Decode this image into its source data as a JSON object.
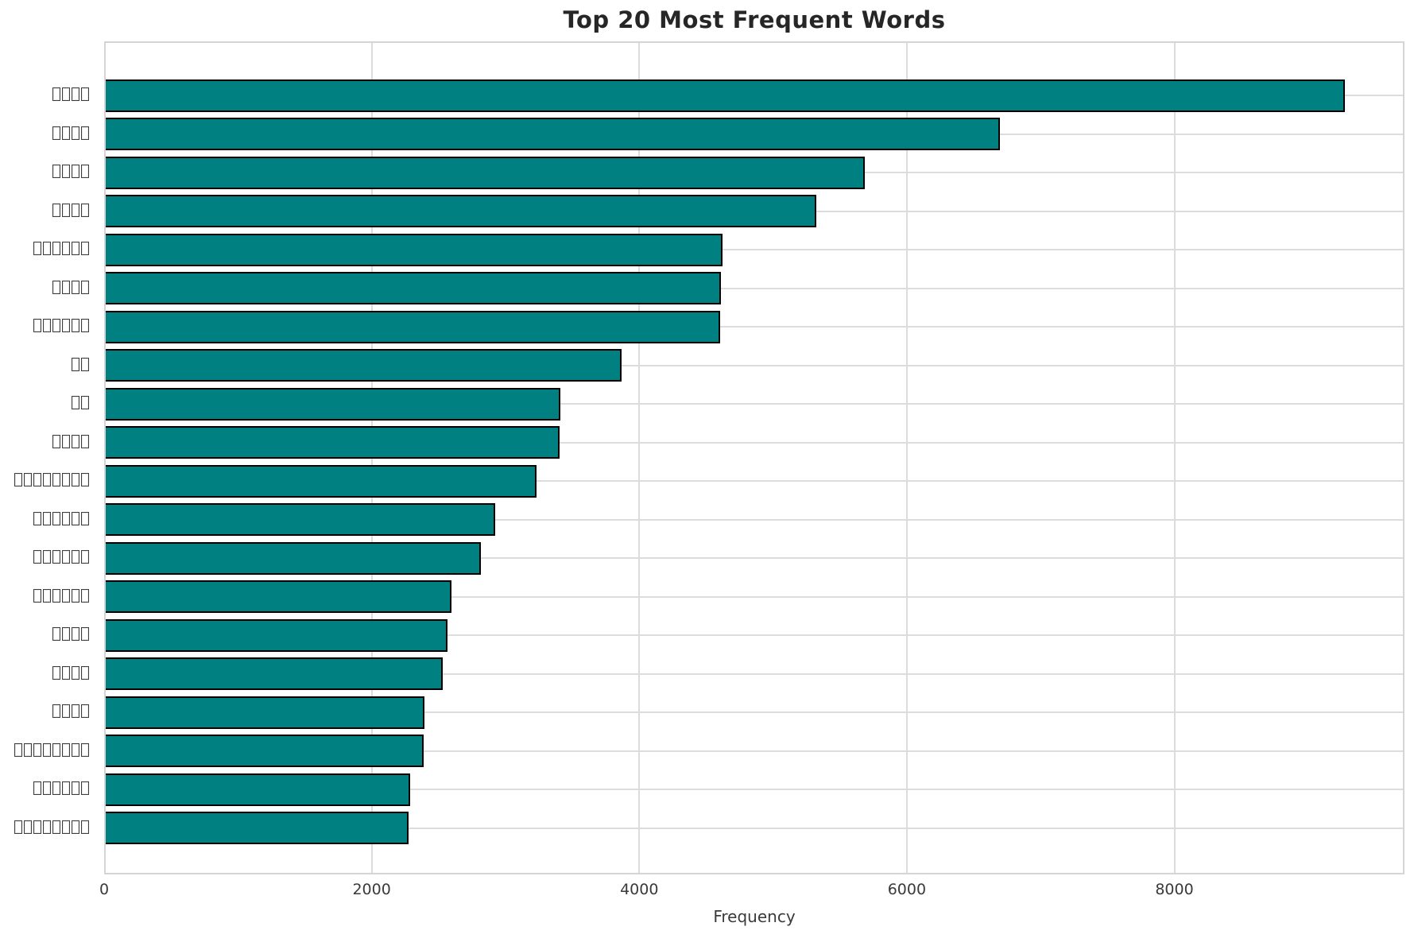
{
  "chart_data": {
    "type": "bar",
    "orientation": "horizontal",
    "title": "Top 20 Most Frequent Words",
    "xlabel": "Frequency",
    "ylabel": "",
    "xlim": [
      0,
      9720
    ],
    "xticks": [
      0,
      2000,
      4000,
      6000,
      8000
    ],
    "grid": true,
    "legend": false,
    "bar_color": "#008080",
    "bar_edge_color": "#000000",
    "grid_color": "#dcdcdc",
    "categories": [
      "□□□□",
      "□□□□",
      "□□□□",
      "□□□□",
      "□□□□□□",
      "□□□□",
      "□□□□□□",
      "□□",
      "□□",
      "□□□□",
      "□□□□□□□□",
      "□□□□□□",
      "□□□□□□",
      "□□□□□□",
      "□□□□",
      "□□□□",
      "□□□□",
      "□□□□□□□□",
      "□□□□□□",
      "□□□□□□□□"
    ],
    "label_box_counts": [
      4,
      4,
      4,
      4,
      6,
      4,
      6,
      2,
      2,
      4,
      8,
      6,
      6,
      6,
      4,
      4,
      4,
      8,
      6,
      8
    ],
    "values": [
      9275,
      6695,
      5685,
      5325,
      4625,
      4610,
      4605,
      3865,
      3410,
      3405,
      3230,
      2925,
      2815,
      2595,
      2565,
      2530,
      2395,
      2390,
      2290,
      2275
    ]
  }
}
